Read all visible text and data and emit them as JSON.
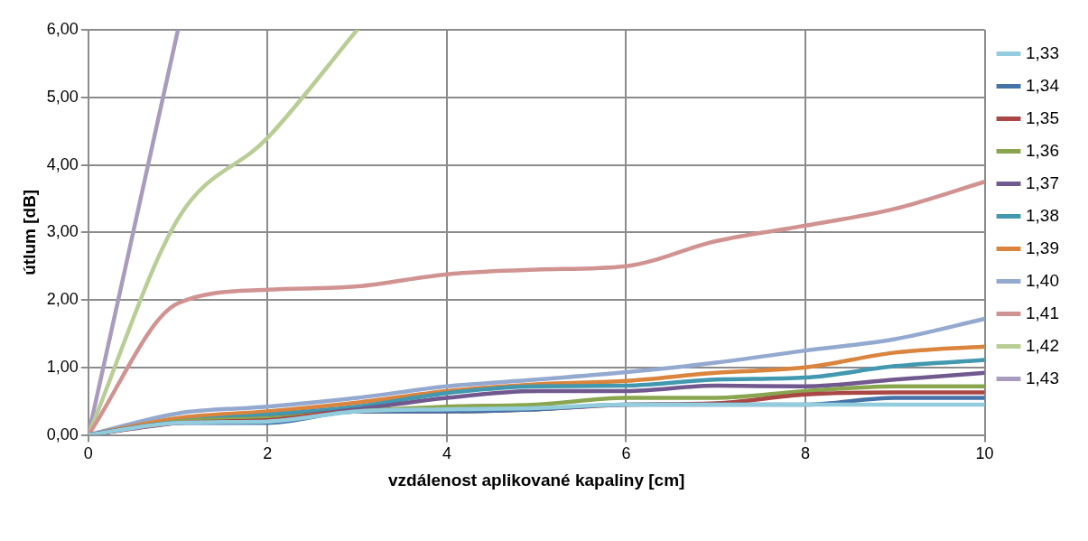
{
  "chart_data": {
    "type": "line",
    "xlabel": "vzdálenost aplikované kapaliny [cm]",
    "ylabel": "útlum [dB]",
    "x": [
      0,
      1,
      2,
      3,
      4,
      5,
      6,
      7,
      8,
      9,
      10
    ],
    "xlim": [
      0,
      10
    ],
    "xticks": [
      0,
      2,
      4,
      6,
      8,
      10
    ],
    "ylim": [
      0,
      6
    ],
    "yticks": [
      {
        "value": 0,
        "label": "0,00"
      },
      {
        "value": 1,
        "label": "1,00"
      },
      {
        "value": 2,
        "label": "2,00"
      },
      {
        "value": 3,
        "label": "3,00"
      },
      {
        "value": 4,
        "label": "4,00"
      },
      {
        "value": 5,
        "label": "5,00"
      },
      {
        "value": 6,
        "label": "6,00"
      }
    ],
    "grid": true,
    "legend": "right",
    "marker": "none",
    "line_style": "solid",
    "series": [
      {
        "name": "1,33",
        "color": "#93cddd",
        "values": [
          0,
          0.18,
          0.2,
          0.35,
          0.38,
          0.4,
          0.45,
          0.45,
          0.45,
          0.45,
          0.45
        ]
      },
      {
        "name": "1,34",
        "color": "#4572a7",
        "values": [
          0,
          0.18,
          0.18,
          0.35,
          0.35,
          0.38,
          0.45,
          0.45,
          0.45,
          0.55,
          0.55
        ]
      },
      {
        "name": "1,35",
        "color": "#aa4643",
        "values": [
          0,
          0.18,
          0.22,
          0.35,
          0.35,
          0.38,
          0.45,
          0.47,
          0.6,
          0.63,
          0.63
        ]
      },
      {
        "name": "1,36",
        "color": "#89a54e",
        "values": [
          0,
          0.2,
          0.25,
          0.35,
          0.42,
          0.45,
          0.55,
          0.55,
          0.65,
          0.72,
          0.72
        ]
      },
      {
        "name": "1,37",
        "color": "#71588f",
        "values": [
          0,
          0.18,
          0.25,
          0.38,
          0.55,
          0.65,
          0.65,
          0.73,
          0.72,
          0.82,
          0.92
        ]
      },
      {
        "name": "1,38",
        "color": "#4198af",
        "values": [
          0,
          0.2,
          0.3,
          0.42,
          0.62,
          0.72,
          0.73,
          0.82,
          0.85,
          1.02,
          1.11
        ]
      },
      {
        "name": "1,39",
        "color": "#db843d",
        "values": [
          0,
          0.25,
          0.35,
          0.48,
          0.65,
          0.75,
          0.8,
          0.92,
          1.0,
          1.22,
          1.31
        ]
      },
      {
        "name": "1,40",
        "color": "#93a9cf",
        "values": [
          0,
          0.32,
          0.42,
          0.55,
          0.72,
          0.82,
          0.93,
          1.07,
          1.25,
          1.42,
          1.72
        ]
      },
      {
        "name": "1,41",
        "color": "#d19392",
        "values": [
          0,
          1.95,
          2.15,
          2.2,
          2.38,
          2.45,
          2.5,
          2.87,
          3.1,
          3.35,
          3.75
        ]
      },
      {
        "name": "1,42",
        "color": "#b9cd96",
        "values": [
          0,
          3.2,
          4.4,
          6.0,
          null,
          null,
          null,
          null,
          null,
          null,
          null
        ]
      },
      {
        "name": "1,43",
        "color": "#a99bbd",
        "values": [
          0,
          6.0,
          null,
          null,
          null,
          null,
          null,
          null,
          null,
          null,
          null
        ]
      }
    ]
  }
}
